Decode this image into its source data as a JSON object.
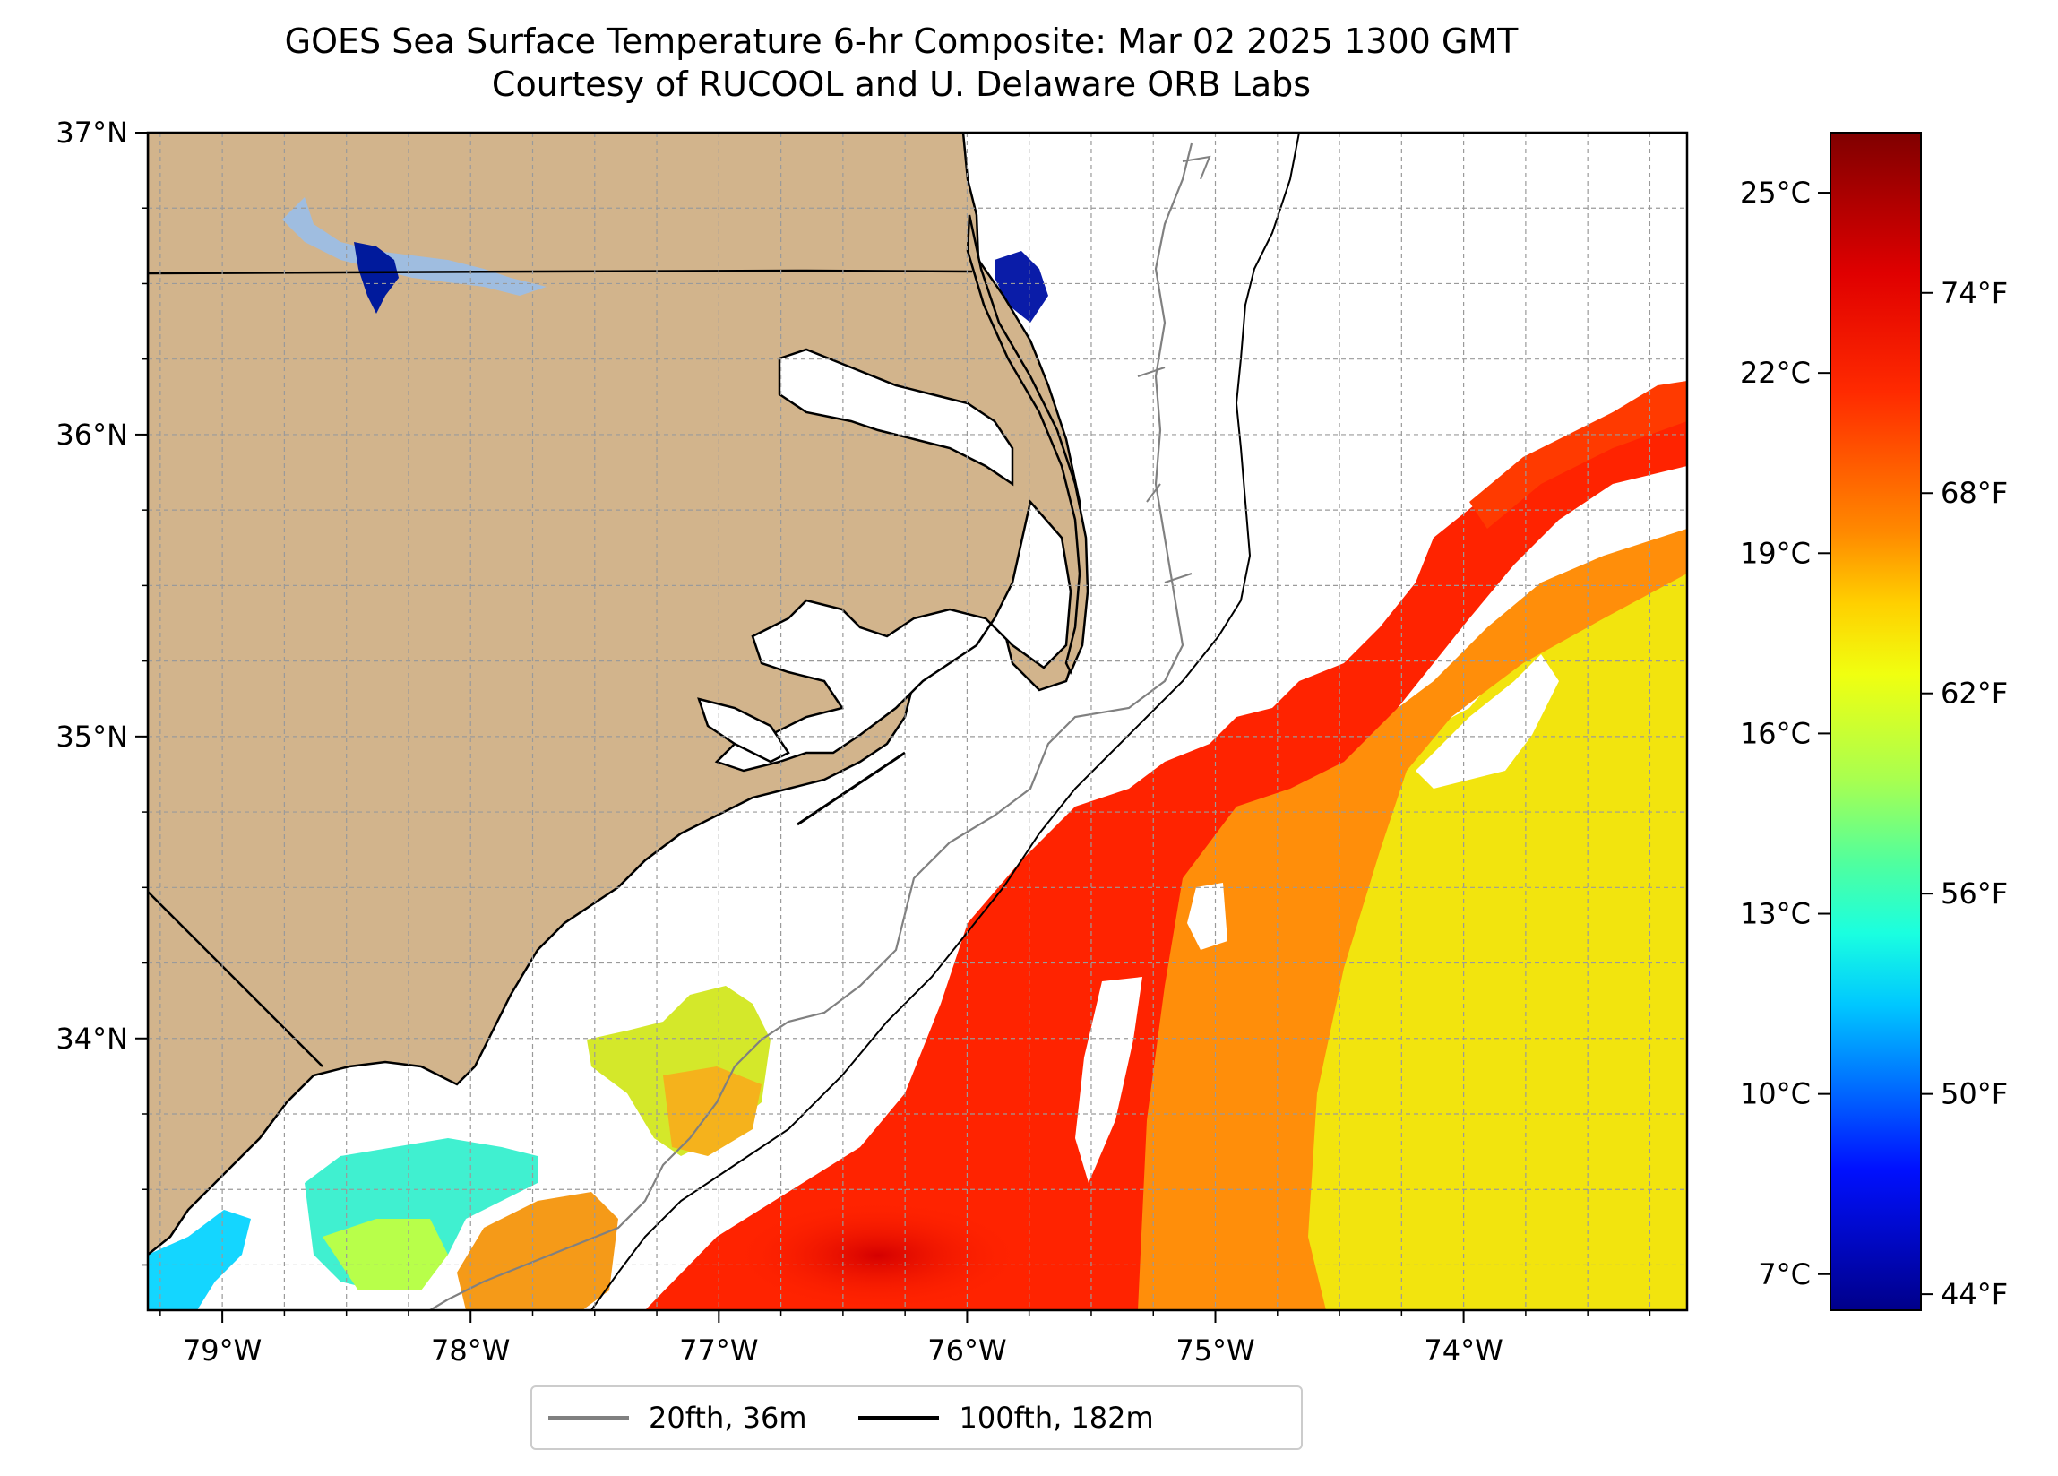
{
  "title": {
    "line1": "GOES Sea Surface Temperature 6-hr Composite: Mar 02 2025 1300 GMT",
    "line2": "Courtesy of RUCOOL and U. Delaware ORB Labs"
  },
  "map": {
    "lon_range": [
      -79.3,
      -73.1
    ],
    "lat_range": [
      33.1,
      37.0
    ],
    "lon_ticks": [
      {
        "value": -79,
        "label": "79°W"
      },
      {
        "value": -78,
        "label": "78°W"
      },
      {
        "value": -77,
        "label": "77°W"
      },
      {
        "value": -76,
        "label": "76°W"
      },
      {
        "value": -75,
        "label": "75°W"
      },
      {
        "value": -74,
        "label": "74°W"
      }
    ],
    "lat_ticks": [
      {
        "value": 37,
        "label": "37°N"
      },
      {
        "value": 36,
        "label": "36°N"
      },
      {
        "value": 35,
        "label": "35°N"
      },
      {
        "value": 34,
        "label": "34°N"
      }
    ],
    "grid": true,
    "land_color": "#d2b48c",
    "ocean_color": "#ffffff"
  },
  "colorbar": {
    "range_c": [
      6.4,
      26.0
    ],
    "celsius_ticks": [
      {
        "value": 25,
        "label": "25°C"
      },
      {
        "value": 22,
        "label": "22°C"
      },
      {
        "value": 19,
        "label": "19°C"
      },
      {
        "value": 16,
        "label": "16°C"
      },
      {
        "value": 13,
        "label": "13°C"
      },
      {
        "value": 10,
        "label": "10°C"
      },
      {
        "value": 7,
        "label": "7°C"
      }
    ],
    "fahrenheit_ticks": [
      {
        "value": 74,
        "label": "74°F"
      },
      {
        "value": 68,
        "label": "68°F"
      },
      {
        "value": 62,
        "label": "62°F"
      },
      {
        "value": 56,
        "label": "56°F"
      },
      {
        "value": 50,
        "label": "50°F"
      },
      {
        "value": 44,
        "label": "44°F"
      }
    ],
    "colormap": [
      "#800000",
      "#ff1a00",
      "#ff8000",
      "#ffe600",
      "#c0ff3a",
      "#3dffb9",
      "#00e4f8",
      "#0090ff",
      "#0010ff",
      "#00008f"
    ]
  },
  "legend": {
    "placement": "bottom-center",
    "items": [
      {
        "label": "20fth, 36m",
        "color": "#808080"
      },
      {
        "label": "100fth, 182m",
        "color": "#000000"
      }
    ]
  }
}
